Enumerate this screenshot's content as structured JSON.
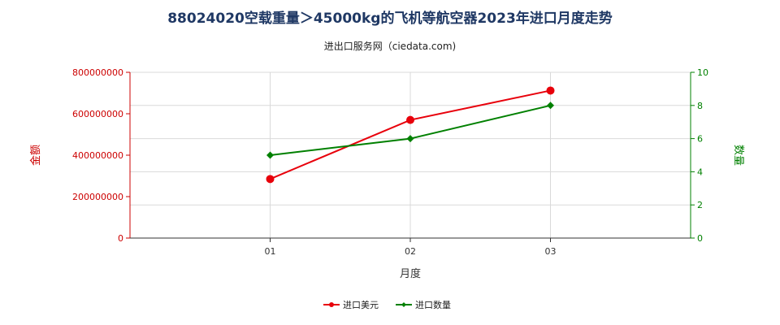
{
  "chart_data": {
    "type": "line",
    "title": "88024020空载重量＞45000kg的飞机等航空器2023年进口月度走势",
    "subtitle": "进出口服务网（ciedata.com)",
    "xlabel": "月度",
    "ylabel_left": "金额",
    "ylabel_right": "数量",
    "categories": [
      "01",
      "02",
      "03"
    ],
    "ylim_left": [
      0,
      800000000
    ],
    "yticks_left": [
      "0",
      "200000000",
      "400000000",
      "600000000",
      "800000000"
    ],
    "ylim_right": [
      0,
      10
    ],
    "yticks_right": [
      "0",
      "2",
      "4",
      "6",
      "8",
      "10"
    ],
    "grid": true,
    "series": [
      {
        "name": "进口美元",
        "axis": "left",
        "color": "#e8000b",
        "marker": "circle",
        "values": [
          285000000,
          570000000,
          712000000
        ]
      },
      {
        "name": "进口数量",
        "axis": "right",
        "color": "#008000",
        "marker": "diamond",
        "values": [
          5,
          6,
          8
        ]
      }
    ],
    "legend": "bottom-center"
  }
}
